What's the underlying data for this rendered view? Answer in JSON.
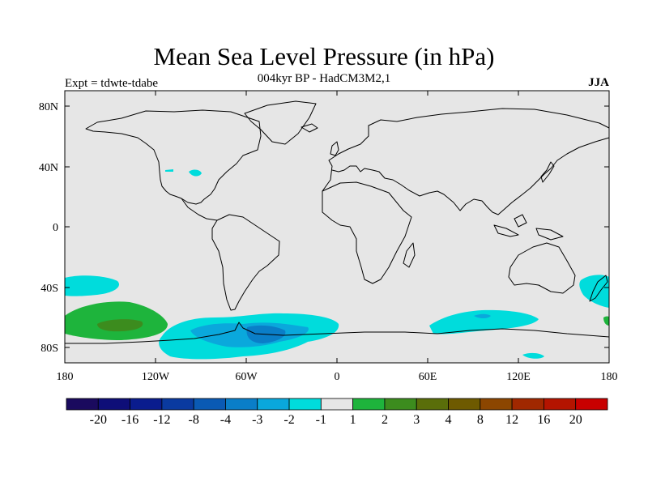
{
  "title": "Mean Sea Level Pressure (in hPa)",
  "subtitle": "004kyr BP - HadCM3M2,1",
  "left_label": "Expt = tdwte-tdabe",
  "right_label": "JJA",
  "lat_ticks": [
    "80N",
    "40N",
    "0",
    "40S",
    "80S"
  ],
  "lon_ticks": [
    "180",
    "120W",
    "60W",
    "0",
    "60E",
    "120E",
    "180"
  ],
  "colorbar": {
    "colors": [
      "#1a0a5e",
      "#0e0e78",
      "#0a1c8e",
      "#0a3aa0",
      "#0a5ab4",
      "#0a7ec8",
      "#0aa8dc",
      "#00dcdc",
      "#e6e6e6",
      "#1eb43c",
      "#3c8c1e",
      "#5a6e0a",
      "#6e5a00",
      "#8c4600",
      "#a02800",
      "#b41400",
      "#c80000"
    ],
    "labels": [
      "-20",
      "-16",
      "-12",
      "-8",
      "-4",
      "-3",
      "-2",
      "-1",
      "1",
      "2",
      "3",
      "4",
      "8",
      "12",
      "16",
      "20"
    ]
  },
  "colors": {
    "ocean_background": "#e6e6e6",
    "coastline": "#000000"
  }
}
